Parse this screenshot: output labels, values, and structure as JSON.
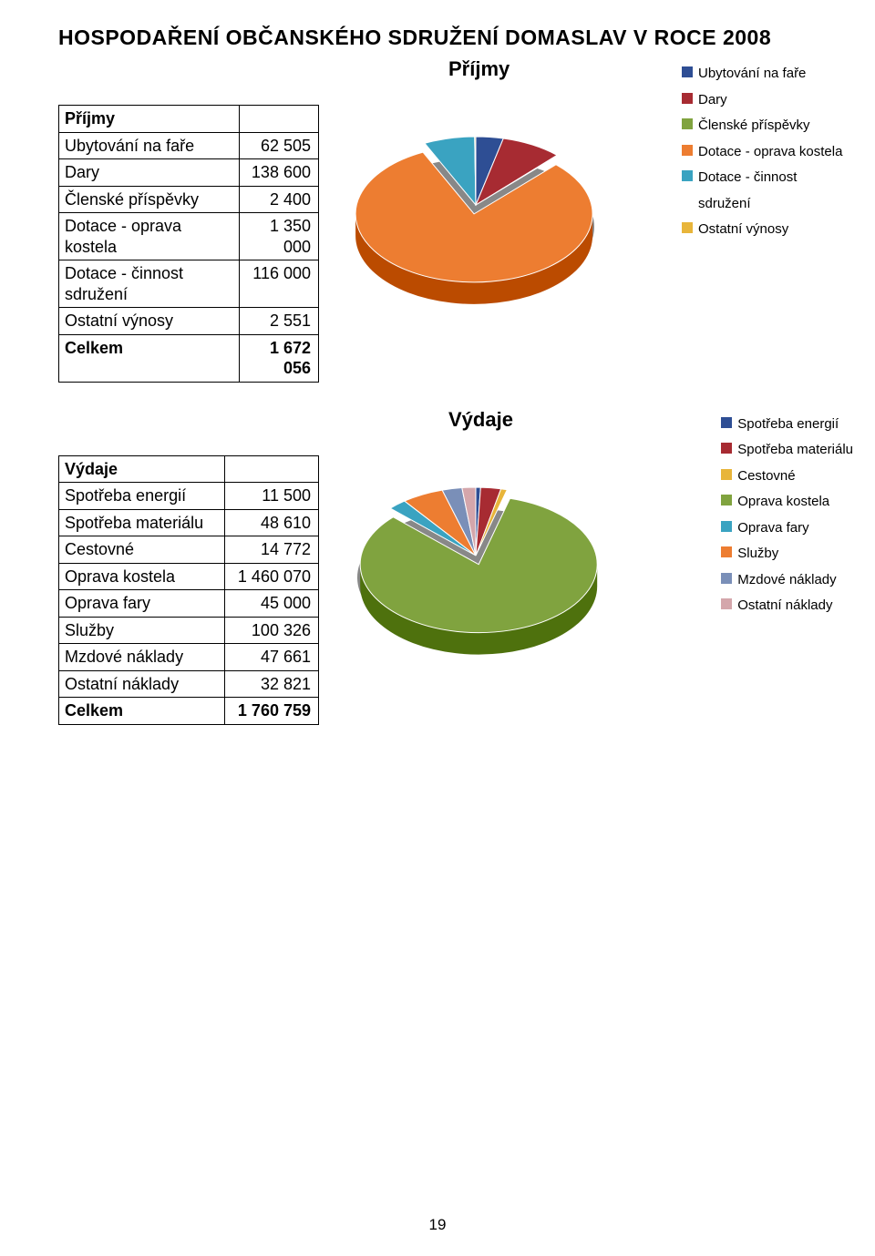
{
  "title": "HOSPODAŘENÍ OBČANSKÉHO SDRUŽENÍ DOMASLAV V ROCE 2008",
  "income": {
    "header": "Příjmy",
    "rows": [
      {
        "label": "Ubytování na faře",
        "value": "62 505"
      },
      {
        "label": "Dary",
        "value": "138 600"
      },
      {
        "label": "Členské příspěvky",
        "value": "2 400"
      },
      {
        "label": "Dotace - oprava kostela",
        "value": "1 350 000"
      },
      {
        "label": "Dotace - činnost sdružení",
        "value": "116 000"
      },
      {
        "label": "Ostatní výnosy",
        "value": "2 551"
      }
    ],
    "total_label": "Celkem",
    "total_value": "1 672 056",
    "chart": {
      "title": "Příjmy",
      "colors": [
        "#2e4e94",
        "#a72b32",
        "#80a33f",
        "#ed7d31",
        "#3aa3c1",
        "#e8b53a"
      ],
      "values": [
        62505,
        138600,
        2400,
        1350000,
        116000,
        2551
      ],
      "legend": [
        "Ubytování na faře",
        "Dary",
        "Členské příspěvky",
        "Dotace - oprava kostela",
        "Dotace - činnost sdružení",
        "Ostatní výnosy"
      ]
    }
  },
  "expenses": {
    "header": "Výdaje",
    "rows": [
      {
        "label": "Spotřeba energií",
        "value": "11 500"
      },
      {
        "label": "Spotřeba materiálu",
        "value": "48 610"
      },
      {
        "label": "Cestovné",
        "value": "14 772"
      },
      {
        "label": "Oprava kostela",
        "value": "1 460 070"
      },
      {
        "label": "Oprava fary",
        "value": "45 000"
      },
      {
        "label": "Služby",
        "value": "100 326"
      },
      {
        "label": "Mzdové náklady",
        "value": "47 661"
      },
      {
        "label": "Ostatní náklady",
        "value": "32 821"
      }
    ],
    "total_label": "Celkem",
    "total_value": "1 760 759",
    "chart": {
      "title": "Výdaje",
      "colors": [
        "#2e4e94",
        "#a72b32",
        "#e8b53a",
        "#80a33f",
        "#3aa3c1",
        "#ed7d31",
        "#7a8fb8",
        "#d4a6ab"
      ],
      "values": [
        11500,
        48610,
        14772,
        1460070,
        45000,
        100326,
        47661,
        32821
      ],
      "legend": [
        "Spotřeba energií",
        "Spotřeba materiálu",
        "Cestovné",
        "Oprava kostela",
        "Oprava fary",
        "Služby",
        "Mzdové náklady",
        "Ostatní náklady"
      ]
    }
  },
  "page": "19"
}
